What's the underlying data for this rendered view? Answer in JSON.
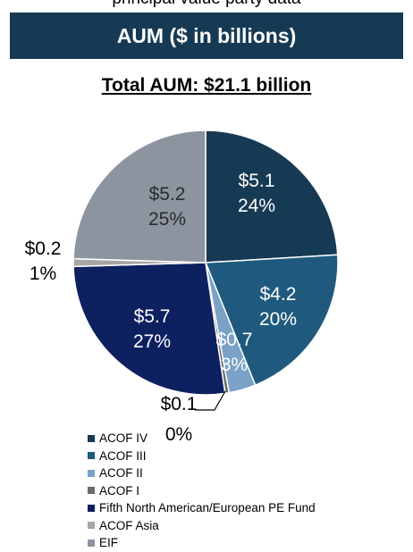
{
  "top_text": "principal value party data",
  "header": {
    "title": "AUM ($ in billions)"
  },
  "chart_data": {
    "type": "pie",
    "title": "Total AUM: $21.1 billion",
    "slices": [
      {
        "name": "ACOF IV",
        "value": 5.1,
        "value_label": "$5.1",
        "percent_label": "24%",
        "color": "#163a54"
      },
      {
        "name": "ACOF III",
        "value": 4.2,
        "value_label": "$4.2",
        "percent_label": "20%",
        "color": "#1f5a7e"
      },
      {
        "name": "ACOF II",
        "value": 0.7,
        "value_label": "$0.7",
        "percent_label": "3%",
        "color": "#7aa1c6"
      },
      {
        "name": "ACOF I",
        "value": 0.1,
        "value_label": "$0.1",
        "percent_label": "0%",
        "color": "#6b6b6b"
      },
      {
        "name": "Fifth North American/European PE Fund",
        "value": 5.7,
        "value_label": "$5.7",
        "percent_label": "27%",
        "color": "#0d2060"
      },
      {
        "name": "ACOF Asia",
        "value": 0.2,
        "value_label": "$0.2",
        "percent_label": "1%",
        "color": "#a6a6a6"
      },
      {
        "name": "EIF",
        "value": 5.2,
        "value_label": "$5.2",
        "percent_label": "25%",
        "color": "#8c959f"
      }
    ],
    "legend_position": "bottom-left"
  }
}
